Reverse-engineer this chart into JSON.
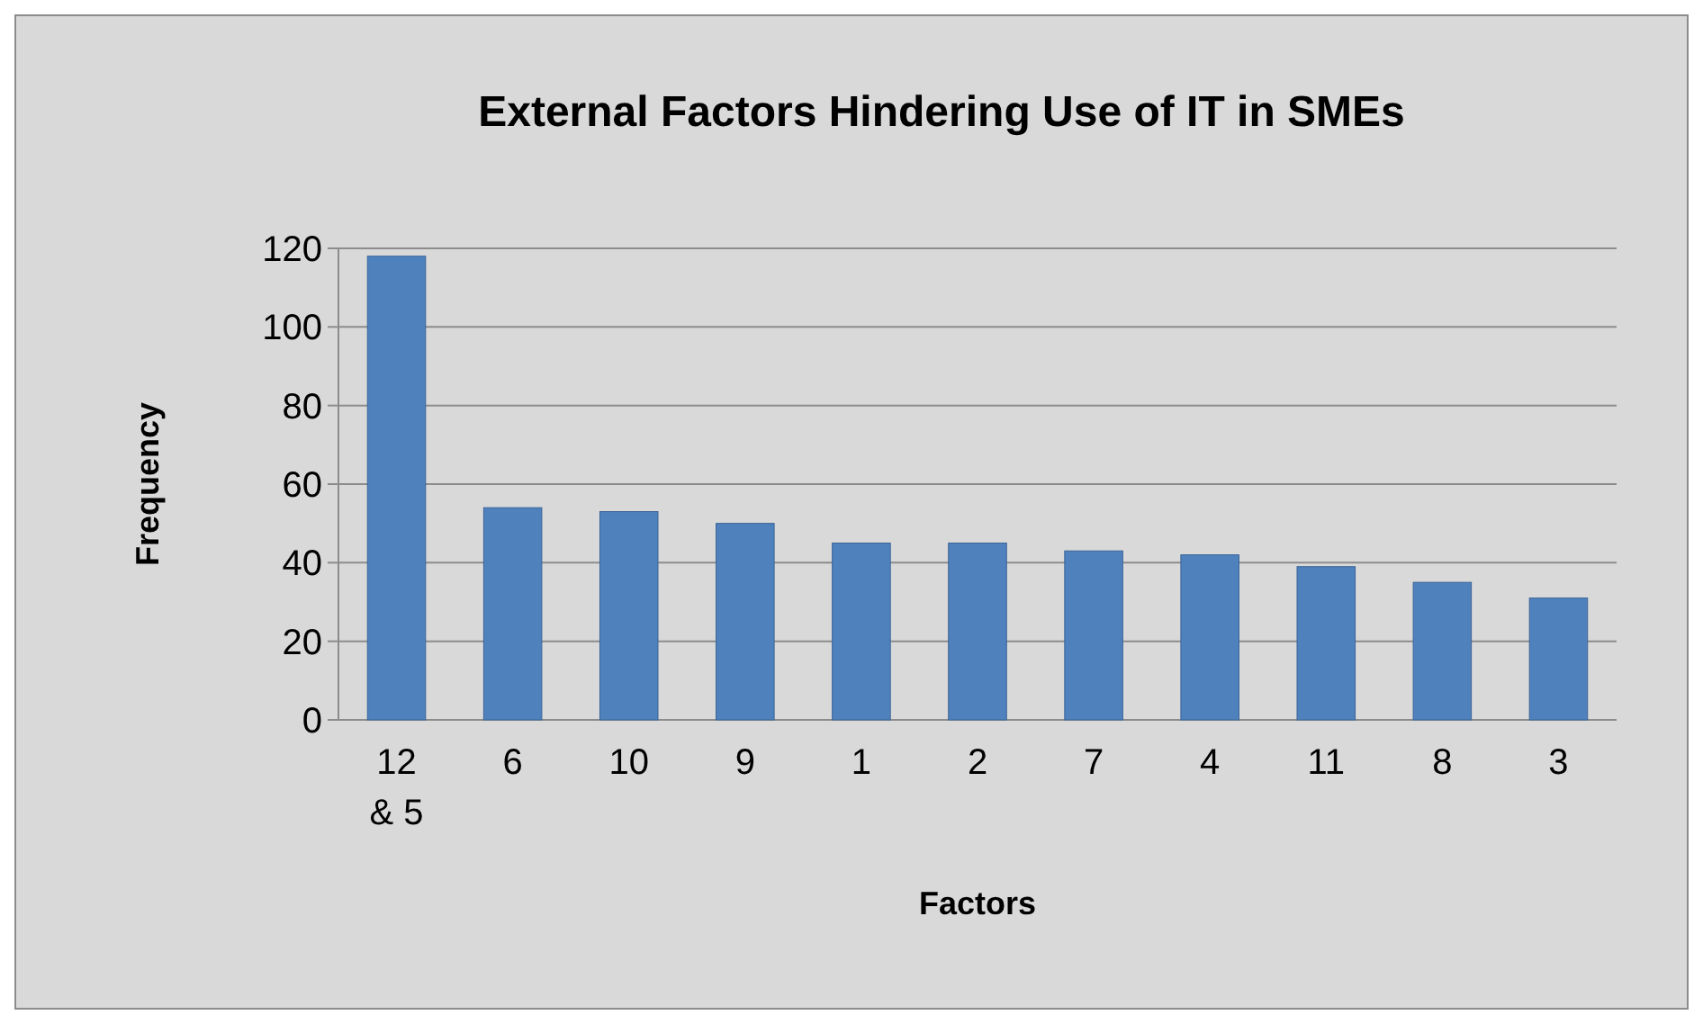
{
  "chart_data": {
    "type": "bar",
    "title": "External Factors Hindering Use of IT in SMEs",
    "xlabel": "Factors",
    "ylabel": "Frequency",
    "categories": [
      "12 & 5",
      "6",
      "10",
      "9",
      "1",
      "2",
      "7",
      "4",
      "11",
      "8",
      "3"
    ],
    "values": [
      118,
      54,
      53,
      50,
      45,
      45,
      43,
      42,
      39,
      35,
      31
    ],
    "color": "#4f81bd",
    "ylim": [
      0,
      120
    ],
    "yticks": [
      0,
      20,
      40,
      60,
      80,
      100,
      120
    ],
    "grid": "y"
  }
}
